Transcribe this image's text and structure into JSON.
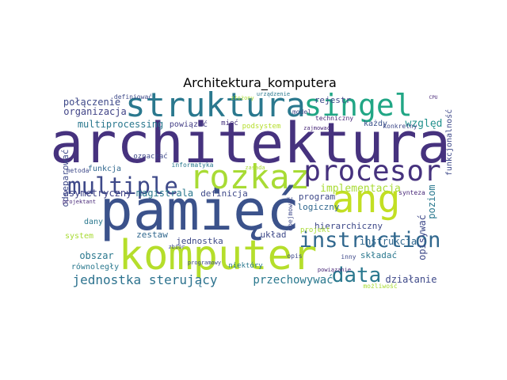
{
  "title": "Architektura_komputera",
  "words": [
    {
      "text": "architektura",
      "color": "#46327e"
    },
    {
      "text": "pamięć",
      "color": "#3b528b"
    },
    {
      "text": "komputer",
      "color": "#b5de2b"
    },
    {
      "text": "rozkaz",
      "color": "#a8db34"
    },
    {
      "text": "struktura",
      "color": "#2a788e"
    },
    {
      "text": "singel",
      "color": "#21a685"
    },
    {
      "text": "procesor",
      "color": "#46327e"
    },
    {
      "text": "ang",
      "color": "#c2df23"
    },
    {
      "text": "instruction",
      "color": "#31688e"
    },
    {
      "text": "multiple",
      "color": "#3e4989"
    },
    {
      "text": "data",
      "color": "#2a788e"
    },
    {
      "text": "jednostka sterujący",
      "color": "#2c728e"
    },
    {
      "text": "przechowywać",
      "color": "#2a788e"
    },
    {
      "text": "połączenie",
      "color": "#3e4989"
    },
    {
      "text": "organizacja",
      "color": "#414487"
    },
    {
      "text": "multiprocessing",
      "color": "#2a788e"
    },
    {
      "text": "powiązać",
      "color": "#433e85"
    },
    {
      "text": "rejestr",
      "color": "#3e4989"
    },
    {
      "text": "techniczny",
      "color": "#482878"
    },
    {
      "text": "każdy",
      "color": "#3b528b"
    },
    {
      "text": "względ",
      "color": "#21918c"
    },
    {
      "text": "podsystem",
      "color": "#b5de2b"
    },
    {
      "text": "mieć",
      "color": "#46327e"
    },
    {
      "text": "funkcja",
      "color": "#31688e"
    },
    {
      "text": "oznaczać",
      "color": "#3e4989"
    },
    {
      "text": "informatyka",
      "color": "#2a788e"
    },
    {
      "text": "asymetryczny",
      "color": "#414487"
    },
    {
      "text": "magistrala",
      "color": "#2a788e"
    },
    {
      "text": "definicja",
      "color": "#3e4989"
    },
    {
      "text": "implementacja",
      "color": "#a8db34"
    },
    {
      "text": "program",
      "color": "#3e4989"
    },
    {
      "text": "logiczny",
      "color": "#31688e"
    },
    {
      "text": "hierarchiczny",
      "color": "#3e4989"
    },
    {
      "text": "układ",
      "color": "#3e4989"
    },
    {
      "text": "zestaw",
      "color": "#31688e"
    },
    {
      "text": "jednostka",
      "color": "#3e4989"
    },
    {
      "text": "obszar",
      "color": "#2a788e"
    },
    {
      "text": "składać",
      "color": "#2a788e"
    },
    {
      "text": "działanie",
      "color": "#3e4989"
    },
    {
      "text": "instrukcja",
      "color": "#31688e"
    },
    {
      "text": "dany",
      "color": "#2a788e"
    },
    {
      "text": "system",
      "color": "#a8db34"
    },
    {
      "text": "równoległy",
      "color": "#2a788e"
    },
    {
      "text": "odseparować",
      "color": "#3e4989"
    },
    {
      "text": "poziom",
      "color": "#2a788e"
    },
    {
      "text": "opisywać",
      "color": "#3e4989"
    },
    {
      "text": "funkcjonalność",
      "color": "#3e4989"
    },
    {
      "text": "synteza",
      "color": "#482878"
    },
    {
      "text": "projekt",
      "color": "#a8db34"
    },
    {
      "text": "opis",
      "color": "#3e4989"
    },
    {
      "text": "niektóry",
      "color": "#2a788e"
    },
    {
      "text": "możliwość",
      "color": "#a8db34"
    },
    {
      "text": "metoda",
      "color": "#3e4989"
    },
    {
      "text": "projektant",
      "color": "#482878"
    },
    {
      "text": "konkretny",
      "color": "#3e4989"
    },
    {
      "text": "model",
      "color": "#3e4989"
    },
    {
      "text": "zajmować",
      "color": "#482878"
    },
    {
      "text": "definiować",
      "color": "#3e4989"
    },
    {
      "text": "urządzenie",
      "color": "#2a788e"
    },
    {
      "text": "złożony",
      "color": "#a8db34"
    },
    {
      "text": "zasada",
      "color": "#a8db34"
    },
    {
      "text": "CPU",
      "color": "#482878"
    },
    {
      "text": "inny",
      "color": "#3e4989"
    },
    {
      "text": "powiązanie",
      "color": "#482878"
    },
    {
      "text": "zbiór",
      "color": "#3e4989"
    },
    {
      "text": "programowy",
      "color": "#3e4989"
    },
    {
      "text": "obejmować",
      "color": "#3e4989"
    }
  ]
}
